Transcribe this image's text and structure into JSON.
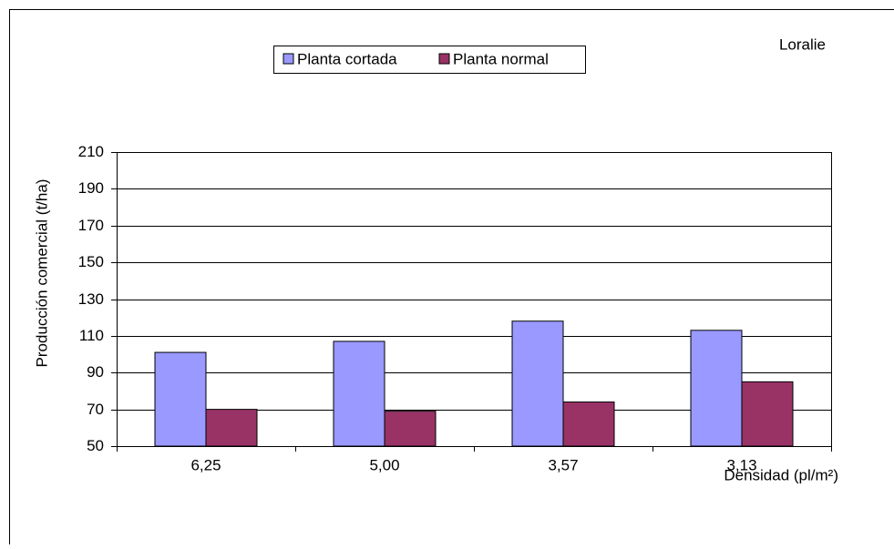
{
  "chart_data": {
    "type": "bar",
    "annotation": "Loralie",
    "x_label": "Densidad (pl/m²)",
    "y_label": "Producción comercial (t/ha)",
    "categories": [
      "6,25",
      "5,00",
      "3,57",
      "3,13"
    ],
    "series": [
      {
        "name": "Planta cortada",
        "color": "#9999ff",
        "values": [
          101,
          107,
          118,
          113
        ]
      },
      {
        "name": "Planta normal",
        "color": "#993366",
        "values": [
          70,
          69,
          74,
          85
        ]
      }
    ],
    "ylim": [
      50,
      210
    ],
    "yticks": [
      50,
      70,
      90,
      110,
      130,
      150,
      170,
      190,
      210
    ],
    "grid": true
  }
}
